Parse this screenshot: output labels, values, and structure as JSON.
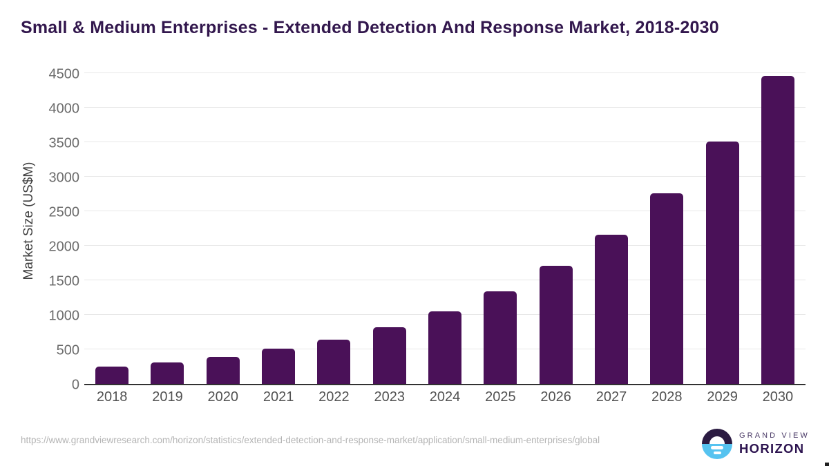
{
  "title": "Small & Medium Enterprises - Extended Detection And Response Market, 2018-2030",
  "chart_data": {
    "type": "bar",
    "title": "Small & Medium Enterprises - Extended Detection And Response Market, 2018-2030",
    "categories": [
      "2018",
      "2019",
      "2020",
      "2021",
      "2022",
      "2023",
      "2024",
      "2025",
      "2026",
      "2027",
      "2028",
      "2029",
      "2030"
    ],
    "values": [
      250,
      308,
      395,
      510,
      645,
      820,
      1050,
      1340,
      1710,
      2160,
      2760,
      3510,
      4460
    ],
    "xlabel": "",
    "ylabel": "Market Size (US$M)",
    "ylim": [
      0,
      4500
    ],
    "yticks": [
      0,
      500,
      1000,
      1500,
      2000,
      2500,
      3000,
      3500,
      4000,
      4500
    ],
    "grid": true,
    "legend_position": "none",
    "bar_color": "#4a1158"
  },
  "footer": {
    "source_url": "https://www.grandviewresearch.com/horizon/statistics/extended-detection-and-response-market/application/small-medium-enterprises/global",
    "brand": {
      "name_top": "GRAND VIEW",
      "name_bottom": "HORIZON"
    }
  },
  "colors": {
    "title_text": "#32174d",
    "bar": "#4a1158",
    "gridline": "#e7e7e7",
    "axis_line": "#323232",
    "x_tick_text": "#525252",
    "y_tick_text": "#6b6b6b",
    "url_text": "#b4b4b4",
    "logo_dark": "#2b1b42",
    "logo_blue": "#56c3f0"
  }
}
